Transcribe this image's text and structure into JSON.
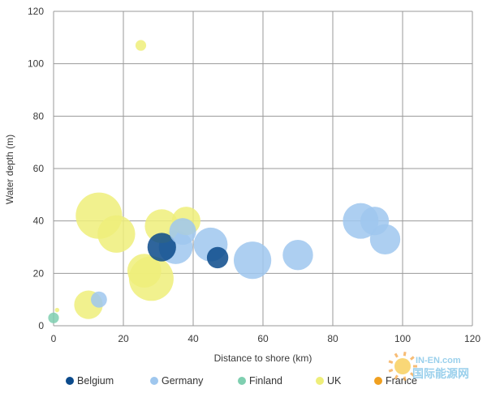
{
  "chart_data": {
    "type": "scatter",
    "xlabel": "Distance to shore (km)",
    "ylabel": "Water depth (m)",
    "xlim": [
      0,
      120
    ],
    "ylim": [
      0,
      120
    ],
    "xticks": [
      0,
      20,
      40,
      60,
      80,
      100,
      120
    ],
    "yticks": [
      0,
      20,
      40,
      60,
      80,
      100,
      120
    ],
    "grid": true,
    "legend_position": "bottom",
    "watermark": "IN-EN.com 国际能源网",
    "series": [
      {
        "name": "Belgium",
        "color": "#0b4a8b",
        "points": [
          {
            "x": 31,
            "y": 30,
            "size": 1.6
          },
          {
            "x": 47,
            "y": 26,
            "size": 1.2
          }
        ]
      },
      {
        "name": "Germany",
        "color": "#9fc7ee",
        "points": [
          {
            "x": 13,
            "y": 10,
            "size": 0.9
          },
          {
            "x": 35,
            "y": 30,
            "size": 1.9
          },
          {
            "x": 37,
            "y": 36,
            "size": 1.5
          },
          {
            "x": 45,
            "y": 31,
            "size": 1.9
          },
          {
            "x": 57,
            "y": 25,
            "size": 2.1
          },
          {
            "x": 70,
            "y": 27,
            "size": 1.7
          },
          {
            "x": 88,
            "y": 40,
            "size": 2.0
          },
          {
            "x": 92,
            "y": 40,
            "size": 1.6
          },
          {
            "x": 95,
            "y": 33,
            "size": 1.7
          }
        ]
      },
      {
        "name": "Finland",
        "color": "#7fcfb0",
        "points": [
          {
            "x": 0,
            "y": 3,
            "size": 0.6
          }
        ]
      },
      {
        "name": "UK",
        "color": "#eeee7a",
        "points": [
          {
            "x": 1,
            "y": 6,
            "size": 0.25
          },
          {
            "x": 25,
            "y": 107,
            "size": 0.6
          },
          {
            "x": 10,
            "y": 8,
            "size": 1.6
          },
          {
            "x": 13,
            "y": 42,
            "size": 2.6
          },
          {
            "x": 18,
            "y": 35,
            "size": 2.1
          },
          {
            "x": 26,
            "y": 21,
            "size": 1.9
          },
          {
            "x": 28,
            "y": 18,
            "size": 2.5
          },
          {
            "x": 31,
            "y": 38,
            "size": 1.9
          },
          {
            "x": 38,
            "y": 40,
            "size": 1.6
          }
        ]
      },
      {
        "name": "France",
        "color": "#f0a020",
        "points": []
      }
    ]
  }
}
